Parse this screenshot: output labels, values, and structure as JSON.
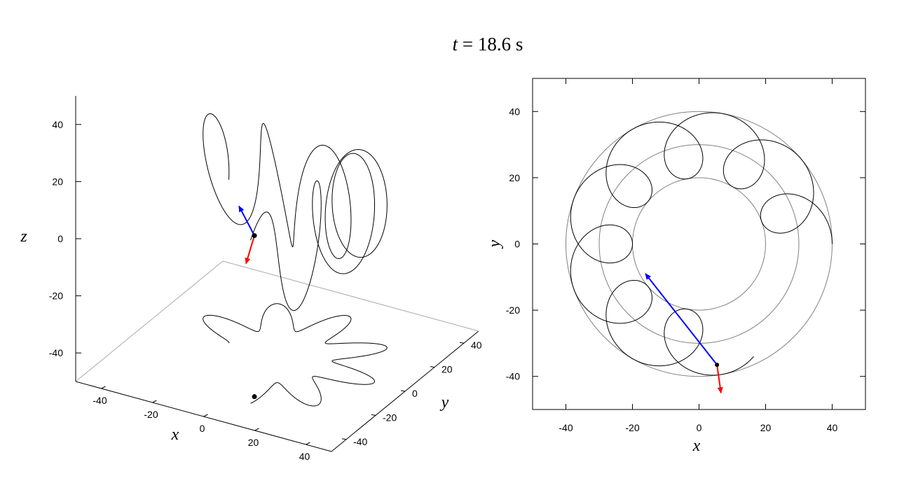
{
  "title": {
    "var": "t",
    "eq": " = ",
    "value": "18.6",
    "unit": " s"
  },
  "colors": {
    "trajectory": "#000000",
    "guide_circles": "#808080",
    "velocity_arrow": "#0000ff",
    "accel_arrow": "#ff0000",
    "axis": "#000000"
  },
  "chart_data": [
    {
      "type": "line",
      "projection": "3d",
      "xlabel": "x",
      "ylabel": "y",
      "zlabel": "z",
      "xlim": [
        -50,
        50
      ],
      "ylim": [
        -50,
        50
      ],
      "zlim": [
        -50,
        50
      ],
      "x_ticks": [
        "-40",
        "-20",
        "0",
        "20",
        "40"
      ],
      "y_ticks": [
        "-40",
        "-20",
        "0",
        "20",
        "40"
      ],
      "z_ticks": [
        "-40",
        "-20",
        "0",
        "20",
        "40"
      ],
      "trajectory": {
        "ring_radius": 30,
        "epicycle_radius": 10,
        "loops": 9,
        "vertical_radius": 30,
        "start_angle_deg": 180,
        "end_angle_deg": -75
      },
      "current_point": {
        "x": 7.8,
        "y": -29,
        "z": 6.4
      },
      "shadow_point": {
        "x": 7.8,
        "y": -29,
        "z": -50
      },
      "grid": false
    },
    {
      "type": "line",
      "projection": "xy",
      "xlabel": "x",
      "ylabel": "y",
      "xlim": [
        -50,
        50
      ],
      "ylim": [
        -50,
        50
      ],
      "x_ticks": [
        "-40",
        "-20",
        "0",
        "20",
        "40"
      ],
      "y_ticks": [
        "-40",
        "-20",
        "0",
        "20",
        "40"
      ],
      "guide_circles": [
        20,
        30,
        40
      ],
      "trajectory": {
        "ring_radius": 30,
        "epicycle_radius": 10,
        "loops": 9,
        "start_angle_deg": 0,
        "end_angle_deg": 285
      },
      "current_point": {
        "x": 5.4,
        "y": -36.5
      },
      "velocity": {
        "dx": -21.5,
        "dy": 27.5
      },
      "acceleration": {
        "dx": 1.2,
        "dy": -8.5
      },
      "grid": false
    }
  ]
}
